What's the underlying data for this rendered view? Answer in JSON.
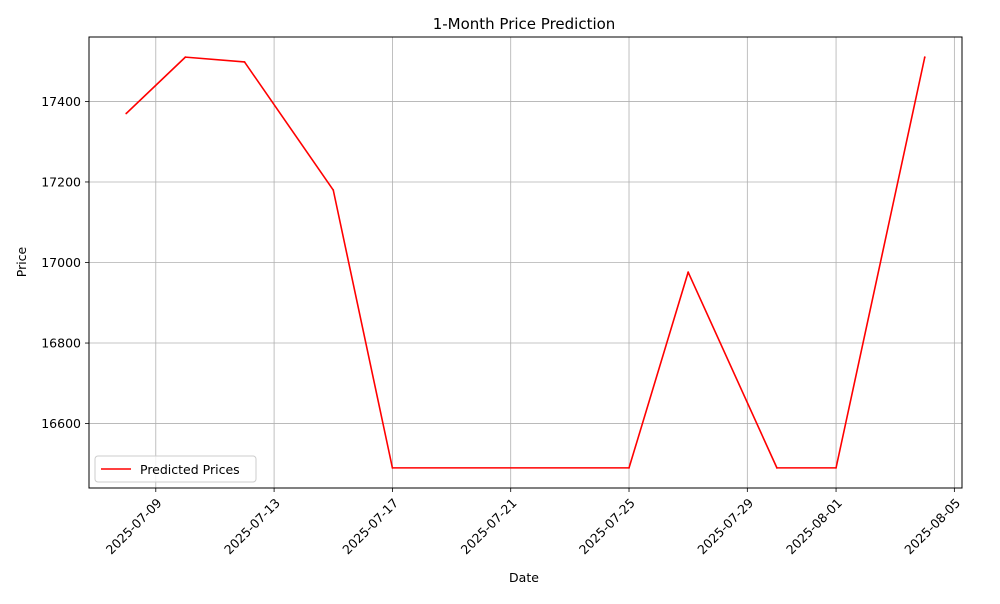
{
  "chart_data": {
    "type": "line",
    "title": "1-Month Price Prediction",
    "xlabel": "Date",
    "ylabel": "Price",
    "xlim": [
      "2025-07-06T17:48",
      "2025-08-05T06:12"
    ],
    "ylim": [
      16440,
      17560
    ],
    "grid": true,
    "legend_position": "lower-left",
    "x_ticks": [
      "2025-07-09",
      "2025-07-13",
      "2025-07-17",
      "2025-07-21",
      "2025-07-25",
      "2025-07-29",
      "2025-08-01",
      "2025-08-05"
    ],
    "y_ticks": [
      16600,
      16800,
      17000,
      17200,
      17400
    ],
    "series": [
      {
        "name": "Predicted Prices",
        "color": "#ff0000",
        "x": [
          "2025-07-08",
          "2025-07-10",
          "2025-07-12",
          "2025-07-15",
          "2025-07-17",
          "2025-07-25",
          "2025-07-27",
          "2025-07-30",
          "2025-08-01",
          "2025-08-04"
        ],
        "y": [
          17370,
          17510,
          17498,
          17180,
          16490,
          16490,
          16976,
          16490,
          16490,
          17510
        ]
      }
    ]
  }
}
